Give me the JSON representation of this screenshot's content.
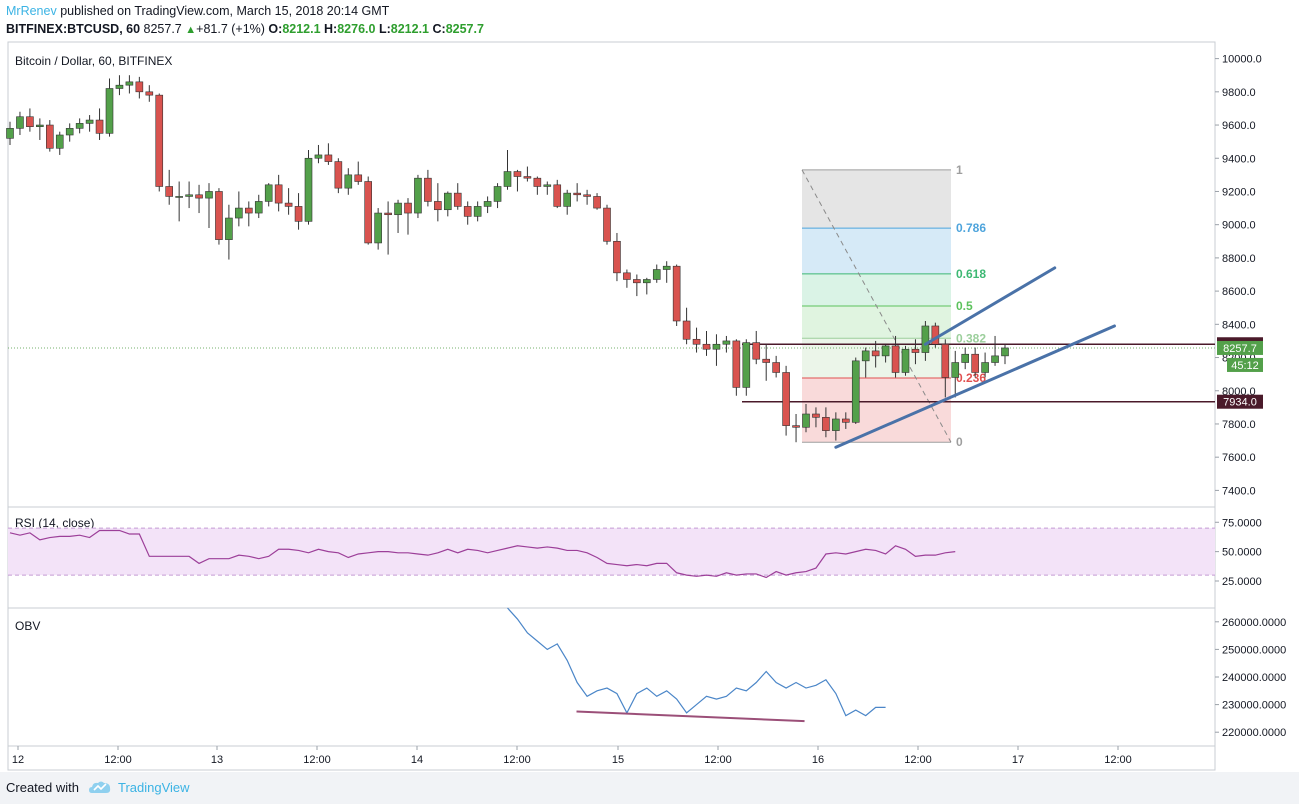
{
  "header": {
    "author": "MrRenev",
    "published": " published on TradingView.com, March 15, 2018 20:14 GMT",
    "symbol": "BITFINEX:BTCUSD, 60",
    "last": "8257.7",
    "change_arrow": "▲",
    "change": "+81.7 (+1%)",
    "o_label": "O:",
    "o": "8212.1",
    "h_label": "H:",
    "h": "8276.0",
    "l_label": "L:",
    "l": "8212.1",
    "c_label": "C:",
    "c": "8257.7"
  },
  "footer": {
    "created": "Created with",
    "brand": "TradingView"
  },
  "colors": {
    "up": "#53a04a",
    "down": "#d9534f",
    "rsi": "#9c3f99",
    "obv": "#4b86c8",
    "channel": "#4a72a8",
    "divergence": "#9b4f78"
  },
  "chart_data": [
    {
      "type": "candlestick",
      "title": "Bitcoin / Dollar, 60, BITFINEX",
      "ylim": [
        7300,
        10100
      ],
      "yticks": [
        "10000.0",
        "9800.0",
        "9600.0",
        "9400.0",
        "9200.0",
        "9000.0",
        "8800.0",
        "8600.0",
        "8400.0",
        "8200.0",
        "8000.0",
        "7800.0",
        "7600.0",
        "7400.0"
      ],
      "xticks": [
        "12",
        "12:00",
        "13",
        "12:00",
        "14",
        "12:00",
        "15",
        "12:00",
        "16",
        "12:00",
        "17",
        "12:00"
      ],
      "candles": [
        [
          9520,
          9620,
          9480,
          9580
        ],
        [
          9580,
          9680,
          9540,
          9650
        ],
        [
          9650,
          9700,
          9560,
          9590
        ],
        [
          9590,
          9640,
          9510,
          9600
        ],
        [
          9600,
          9630,
          9440,
          9460
        ],
        [
          9460,
          9560,
          9420,
          9540
        ],
        [
          9540,
          9610,
          9500,
          9580
        ],
        [
          9580,
          9640,
          9550,
          9610
        ],
        [
          9610,
          9660,
          9560,
          9630
        ],
        [
          9630,
          9700,
          9510,
          9550
        ],
        [
          9550,
          9880,
          9530,
          9820
        ],
        [
          9820,
          9900,
          9780,
          9840
        ],
        [
          9840,
          9900,
          9790,
          9860
        ],
        [
          9860,
          9890,
          9760,
          9800
        ],
        [
          9800,
          9840,
          9740,
          9780
        ],
        [
          9780,
          9790,
          9200,
          9230
        ],
        [
          9230,
          9330,
          9120,
          9170
        ],
        [
          9170,
          9260,
          9020,
          9170
        ],
        [
          9170,
          9260,
          9100,
          9180
        ],
        [
          9180,
          9240,
          9070,
          9160
        ],
        [
          9160,
          9250,
          8980,
          9200
        ],
        [
          9200,
          9220,
          8880,
          8910
        ],
        [
          8910,
          9120,
          8790,
          9040
        ],
        [
          9040,
          9200,
          8990,
          9100
        ],
        [
          9100,
          9140,
          8990,
          9070
        ],
        [
          9070,
          9180,
          9040,
          9140
        ],
        [
          9140,
          9250,
          9110,
          9240
        ],
        [
          9240,
          9300,
          9080,
          9130
        ],
        [
          9130,
          9220,
          9060,
          9110
        ],
        [
          9110,
          9190,
          8970,
          9020
        ],
        [
          9020,
          9450,
          9000,
          9400
        ],
        [
          9400,
          9480,
          9370,
          9420
        ],
        [
          9420,
          9490,
          9360,
          9380
        ],
        [
          9380,
          9400,
          9190,
          9220
        ],
        [
          9220,
          9340,
          9180,
          9300
        ],
        [
          9300,
          9380,
          9240,
          9260
        ],
        [
          9260,
          9290,
          8880,
          8890
        ],
        [
          8890,
          9100,
          8850,
          9070
        ],
        [
          9070,
          9140,
          8820,
          9060
        ],
        [
          9060,
          9150,
          8950,
          9130
        ],
        [
          9130,
          9160,
          8940,
          9070
        ],
        [
          9070,
          9300,
          9040,
          9280
        ],
        [
          9280,
          9330,
          9110,
          9140
        ],
        [
          9140,
          9250,
          9020,
          9090
        ],
        [
          9090,
          9200,
          9050,
          9190
        ],
        [
          9190,
          9250,
          9090,
          9110
        ],
        [
          9110,
          9140,
          9000,
          9050
        ],
        [
          9050,
          9140,
          9020,
          9110
        ],
        [
          9110,
          9170,
          9070,
          9140
        ],
        [
          9140,
          9250,
          9100,
          9230
        ],
        [
          9230,
          9450,
          9210,
          9320
        ],
        [
          9320,
          9330,
          9200,
          9290
        ],
        [
          9290,
          9350,
          9260,
          9280
        ],
        [
          9280,
          9290,
          9180,
          9230
        ],
        [
          9230,
          9260,
          9180,
          9240
        ],
        [
          9240,
          9270,
          9100,
          9110
        ],
        [
          9110,
          9210,
          9060,
          9190
        ],
        [
          9190,
          9250,
          9140,
          9180
        ],
        [
          9180,
          9210,
          9120,
          9170
        ],
        [
          9170,
          9190,
          9090,
          9100
        ],
        [
          9100,
          9120,
          8880,
          8900
        ],
        [
          8900,
          8950,
          8660,
          8710
        ],
        [
          8710,
          8730,
          8620,
          8670
        ],
        [
          8670,
          8700,
          8570,
          8650
        ],
        [
          8650,
          8680,
          8580,
          8670
        ],
        [
          8670,
          8760,
          8650,
          8730
        ],
        [
          8730,
          8780,
          8650,
          8750
        ],
        [
          8750,
          8760,
          8390,
          8420
        ],
        [
          8420,
          8500,
          8280,
          8310
        ],
        [
          8310,
          8380,
          8230,
          8280
        ],
        [
          8280,
          8360,
          8210,
          8250
        ],
        [
          8250,
          8340,
          8150,
          8280
        ],
        [
          8280,
          8330,
          8230,
          8300
        ],
        [
          8300,
          8310,
          7970,
          8020
        ],
        [
          8020,
          8310,
          7970,
          8290
        ],
        [
          8290,
          8360,
          8160,
          8190
        ],
        [
          8190,
          8280,
          8060,
          8170
        ],
        [
          8170,
          8210,
          8080,
          8110
        ],
        [
          8110,
          8150,
          7730,
          7790
        ],
        [
          7790,
          7860,
          7690,
          7780
        ],
        [
          7780,
          7920,
          7750,
          7860
        ],
        [
          7860,
          7900,
          7780,
          7840
        ],
        [
          7840,
          7900,
          7720,
          7760
        ],
        [
          7760,
          7870,
          7700,
          7830
        ],
        [
          7830,
          7870,
          7770,
          7810
        ],
        [
          7810,
          8200,
          7800,
          8180
        ],
        [
          8180,
          8260,
          8080,
          8240
        ],
        [
          8240,
          8300,
          8140,
          8210
        ],
        [
          8210,
          8280,
          8170,
          8270
        ],
        [
          8270,
          8330,
          8080,
          8110
        ],
        [
          8110,
          8270,
          8090,
          8250
        ],
        [
          8250,
          8310,
          8160,
          8230
        ],
        [
          8230,
          8420,
          8180,
          8390
        ],
        [
          8390,
          8410,
          8260,
          8280
        ],
        [
          8280,
          8310,
          7960,
          8080
        ],
        [
          8080,
          8240,
          7960,
          8170
        ],
        [
          8170,
          8260,
          8130,
          8220
        ],
        [
          8220,
          8260,
          8080,
          8110
        ],
        [
          8110,
          8230,
          8080,
          8170
        ],
        [
          8170,
          8330,
          8150,
          8210
        ],
        [
          8210,
          8280,
          8160,
          8257.7
        ]
      ],
      "fibonacci": {
        "start": 7690,
        "end": 9330,
        "levels": [
          {
            "ratio": "1",
            "price": 9330,
            "color": "#9e9e9e"
          },
          {
            "ratio": "0.786",
            "price": 8979,
            "color": "#4ea4dc"
          },
          {
            "ratio": "0.618",
            "price": 8704,
            "color": "#3db873"
          },
          {
            "ratio": "0.5",
            "price": 8510,
            "color": "#5cc25c"
          },
          {
            "ratio": "0.382",
            "price": 8316,
            "color": "#9ccf9c"
          },
          {
            "ratio": "0.236",
            "price": 8077,
            "color": "#e05050"
          },
          {
            "ratio": "0",
            "price": 7690,
            "color": "#9e9e9e"
          }
        ]
      },
      "channel": [
        {
          "x1": 92,
          "y1": 8280,
          "x2": 105,
          "y2": 8740
        },
        {
          "x1": 83,
          "y1": 7660,
          "x2": 111,
          "y2": 8390
        }
      ],
      "price_lines": [
        {
          "price": 8280,
          "label": "8280.0",
          "bg": "#4a1a2a"
        },
        {
          "price": 7934,
          "label": "7934.0",
          "bg": "#4a1a2a"
        }
      ],
      "last_price_label": "8257.7",
      "countdown": "45:12"
    },
    {
      "type": "line",
      "title": "RSI (14, close)",
      "ylim": [
        2,
        88
      ],
      "yticks": [
        "75.0000",
        "50.0000",
        "25.0000"
      ],
      "band": [
        30,
        70
      ],
      "values": [
        66,
        64,
        66,
        60,
        62,
        63,
        63,
        64,
        62,
        68,
        68,
        68,
        65,
        65,
        46,
        46,
        46,
        46,
        46,
        40,
        44,
        44,
        44,
        47,
        46,
        44,
        46,
        52,
        52,
        51,
        49,
        52,
        50,
        49,
        45,
        48,
        49,
        50,
        50,
        49,
        49,
        48,
        47,
        49,
        52,
        49,
        52,
        51,
        49,
        51,
        53,
        55,
        54,
        53,
        54,
        53,
        51,
        51,
        49,
        45,
        40,
        39,
        38,
        39,
        38,
        40,
        40,
        32,
        30,
        29,
        30,
        29,
        32,
        30,
        31,
        31,
        28,
        33,
        30,
        32,
        33,
        36,
        48,
        49,
        48,
        50,
        52,
        51,
        48,
        55,
        52,
        46,
        47,
        47,
        49,
        50
      ]
    },
    {
      "type": "line",
      "title": "OBV",
      "ylim": [
        215000,
        265000
      ],
      "yticks": [
        "260000.0000",
        "250000.0000",
        "240000.0000",
        "230000.0000",
        "220000.0000"
      ],
      "values": [
        266000,
        261000,
        256000,
        253000,
        250000,
        252000,
        246000,
        238000,
        233000,
        235000,
        236000,
        234000,
        227000,
        234000,
        236000,
        233000,
        235000,
        232000,
        227000,
        230000,
        233000,
        232000,
        233000,
        236000,
        235000,
        238000,
        242000,
        238000,
        236000,
        238000,
        236000,
        237000,
        239000,
        234000,
        226000,
        228000,
        226000,
        229000,
        229000
      ],
      "divergence": {
        "x1": 70,
        "y1": 227500,
        "x2": 109,
        "y2": 224000
      }
    }
  ]
}
